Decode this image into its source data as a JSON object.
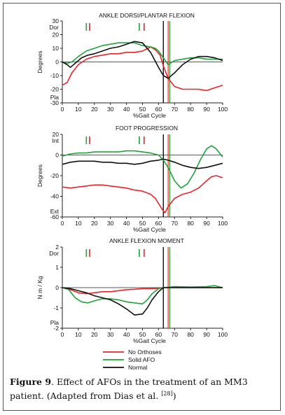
{
  "colors": {
    "no_orthoses": "#e8242b",
    "solid_afo": "#1fa33a",
    "normal": "#111111"
  },
  "legend": {
    "items": [
      {
        "label": "No Orthoses",
        "color": "#e8242b"
      },
      {
        "label": "Solid AFO",
        "color": "#1fa33a"
      },
      {
        "label": "Normal",
        "color": "#111111"
      }
    ]
  },
  "caption": {
    "label": "Figure 9",
    "text_part1": ". Effect of AFOs in the treatment of an MM3 patient. (Adapted from Dias et al. ",
    "ref": "[28]",
    "text_part2": ")"
  },
  "chart_data": [
    {
      "type": "line",
      "title": "ANKLE DORSI/PLANTAR FLEXION",
      "xlabel": "%Gait Cycle",
      "ylabel": "Degrees",
      "xlim": [
        0,
        100
      ],
      "ylim": [
        -30,
        30
      ],
      "x_ticks": [
        0,
        10,
        20,
        30,
        40,
        50,
        60,
        70,
        80,
        90,
        100
      ],
      "y_ticks": [
        30,
        20,
        10,
        0,
        -10,
        -20,
        -30
      ],
      "y_tick_labels": [
        "30",
        "20",
        "10",
        "0",
        "-10",
        "-20",
        "-30"
      ],
      "top_word": "Dor",
      "bottom_word": "Pla",
      "markers": {
        "solid_afo_tick": 15,
        "no_orthoses_tick": 17,
        "solid_afo_tick2": 48,
        "no_orthoses_tick2": 51
      },
      "toe_off": {
        "normal": 63,
        "no_orthoses": 66,
        "solid_afo": 67
      },
      "series": [
        {
          "name": "No Orthoses",
          "color": "#e8242b",
          "x": [
            0,
            3,
            6,
            10,
            15,
            20,
            25,
            30,
            35,
            40,
            45,
            50,
            55,
            58,
            61,
            63,
            66,
            70,
            75,
            80,
            85,
            90,
            95,
            100
          ],
          "y": [
            -17,
            -15,
            -8,
            -2,
            2,
            4,
            5,
            6,
            6,
            7,
            7,
            8,
            11,
            9,
            5,
            -3,
            -12,
            -18,
            -20,
            -20,
            -20,
            -21,
            -19,
            -17
          ]
        },
        {
          "name": "Solid AFO",
          "color": "#1fa33a",
          "x": [
            0,
            3,
            6,
            10,
            15,
            20,
            25,
            30,
            35,
            40,
            45,
            50,
            55,
            58,
            60,
            63,
            66,
            70,
            75,
            80,
            85,
            90,
            95,
            100
          ],
          "y": [
            0,
            -1,
            0,
            4,
            8,
            10,
            12,
            13,
            14,
            14,
            14,
            12,
            11,
            10,
            8,
            3,
            -2,
            1,
            2,
            3,
            3,
            2,
            2,
            2
          ]
        },
        {
          "name": "Normal",
          "color": "#111111",
          "x": [
            0,
            3,
            5,
            8,
            12,
            16,
            20,
            25,
            30,
            35,
            40,
            45,
            50,
            55,
            60,
            63,
            66,
            70,
            75,
            80,
            85,
            90,
            95,
            100
          ],
          "y": [
            0,
            -2,
            -4,
            -1,
            3,
            5,
            6,
            8,
            10,
            11,
            13,
            15,
            14,
            7,
            -4,
            -10,
            -12,
            -8,
            -2,
            2,
            4,
            4,
            3,
            1
          ]
        }
      ]
    },
    {
      "type": "line",
      "title": "FOOT PROGRESSION",
      "xlabel": "%Gait Cycle",
      "ylabel": "Degrees",
      "xlim": [
        0,
        100
      ],
      "ylim": [
        -60,
        20
      ],
      "x_ticks": [
        0,
        10,
        20,
        30,
        40,
        50,
        60,
        70,
        80,
        90,
        100
      ],
      "y_ticks": [
        20,
        0,
        -20,
        -40,
        -60
      ],
      "y_tick_labels": [
        "20",
        "0",
        "-20",
        "-40",
        "-60"
      ],
      "top_word": "Int",
      "bottom_word": "Ext",
      "markers": {
        "solid_afo_tick": 15,
        "no_orthoses_tick": 17,
        "solid_afo_tick2": 48,
        "no_orthoses_tick2": 51
      },
      "toe_off": {
        "normal": 63,
        "no_orthoses": 66,
        "solid_afo": 67
      },
      "series": [
        {
          "name": "No Orthoses",
          "color": "#e8242b",
          "x": [
            0,
            5,
            10,
            15,
            20,
            25,
            30,
            35,
            40,
            45,
            50,
            55,
            58,
            60,
            62,
            64,
            66,
            70,
            75,
            80,
            85,
            90,
            93,
            96,
            100
          ],
          "y": [
            -31,
            -32,
            -31,
            -30,
            -29,
            -29,
            -30,
            -31,
            -32,
            -34,
            -35,
            -38,
            -42,
            -47,
            -52,
            -56,
            -50,
            -42,
            -38,
            -36,
            -32,
            -25,
            -21,
            -20,
            -22
          ]
        },
        {
          "name": "Solid AFO",
          "color": "#1fa33a",
          "x": [
            0,
            5,
            10,
            15,
            20,
            25,
            30,
            35,
            40,
            45,
            50,
            55,
            60,
            63,
            66,
            70,
            74,
            78,
            82,
            86,
            90,
            93,
            96,
            100
          ],
          "y": [
            -1,
            1,
            2,
            2,
            3,
            3,
            3,
            3,
            4,
            4,
            3,
            2,
            0,
            -5,
            -12,
            -25,
            -32,
            -28,
            -18,
            -5,
            6,
            9,
            6,
            -2
          ]
        },
        {
          "name": "Normal",
          "color": "#111111",
          "x": [
            0,
            5,
            10,
            15,
            20,
            25,
            30,
            35,
            40,
            45,
            50,
            55,
            60,
            63,
            66,
            70,
            75,
            80,
            85,
            90,
            95,
            100
          ],
          "y": [
            -9,
            -7,
            -6,
            -6,
            -6,
            -7,
            -7,
            -8,
            -8,
            -9,
            -8,
            -6,
            -5,
            -4,
            -5,
            -7,
            -10,
            -12,
            -13,
            -12,
            -10,
            -8
          ]
        }
      ]
    },
    {
      "type": "line",
      "title": "ANKLE FLEXION MOMENT",
      "xlabel": "%Gait Cycle",
      "ylabel": "N m / Kg",
      "xlim": [
        0,
        100
      ],
      "ylim": [
        -2,
        2
      ],
      "x_ticks": [
        0,
        10,
        20,
        30,
        40,
        50,
        60,
        70,
        80,
        90,
        100
      ],
      "y_ticks": [
        2,
        1,
        0,
        -1,
        -2
      ],
      "y_tick_labels": [
        "2",
        "1",
        "0",
        "-1",
        "-2"
      ],
      "top_word": "Dor",
      "bottom_word": "Pla",
      "markers": {
        "solid_afo_tick": 15,
        "no_orthoses_tick": 17,
        "solid_afo_tick2": 48,
        "no_orthoses_tick2": 51
      },
      "toe_off": {
        "normal": 63,
        "no_orthoses": 66,
        "solid_afo": 67
      },
      "series": [
        {
          "name": "No Orthoses",
          "color": "#e8242b",
          "x": [
            0,
            5,
            10,
            15,
            20,
            25,
            30,
            35,
            40,
            45,
            50,
            55,
            60,
            63,
            66,
            70,
            80,
            90,
            100
          ],
          "y": [
            0,
            -0.1,
            -0.25,
            -0.3,
            -0.25,
            -0.2,
            -0.2,
            -0.15,
            -0.1,
            -0.08,
            -0.05,
            -0.05,
            -0.03,
            0,
            0,
            0,
            0,
            0,
            0
          ]
        },
        {
          "name": "Solid AFO",
          "color": "#1fa33a",
          "x": [
            0,
            4,
            8,
            12,
            16,
            20,
            25,
            30,
            35,
            40,
            45,
            50,
            53,
            56,
            60,
            63,
            66,
            70,
            80,
            90,
            95,
            100
          ],
          "y": [
            0,
            -0.1,
            -0.5,
            -0.7,
            -0.75,
            -0.65,
            -0.55,
            -0.55,
            -0.6,
            -0.7,
            -0.75,
            -0.8,
            -0.6,
            -0.3,
            -0.05,
            0,
            0.02,
            0.05,
            0.03,
            0.05,
            0.1,
            0
          ]
        },
        {
          "name": "Normal",
          "color": "#111111",
          "x": [
            0,
            5,
            10,
            15,
            20,
            25,
            30,
            35,
            40,
            45,
            50,
            53,
            56,
            60,
            63,
            66,
            70,
            80,
            100
          ],
          "y": [
            0,
            -0.05,
            -0.15,
            -0.25,
            -0.4,
            -0.5,
            -0.6,
            -0.8,
            -1.05,
            -1.35,
            -1.3,
            -1.0,
            -0.6,
            -0.2,
            0,
            0,
            0,
            0,
            0
          ]
        }
      ]
    }
  ]
}
